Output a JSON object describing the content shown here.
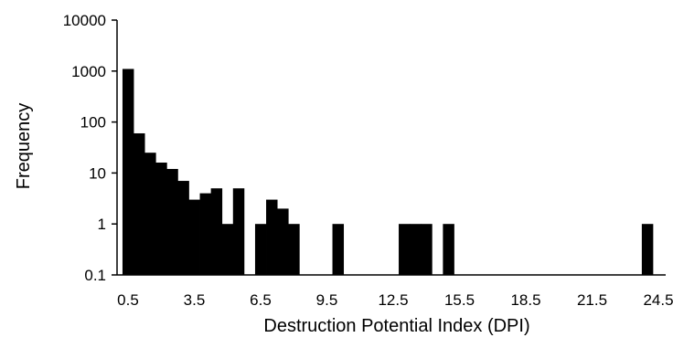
{
  "chart_data": {
    "type": "bar",
    "title": "",
    "xlabel": "Destruction Potential Index (DPI)",
    "ylabel": "Frequency",
    "y_scale": "log",
    "ylim": [
      0.1,
      10000
    ],
    "y_ticks": [
      "0.1",
      "1",
      "10",
      "100",
      "1000",
      "10000"
    ],
    "x_tick_labels": [
      "0.5",
      "3.5",
      "6.5",
      "9.5",
      "12.5",
      "15.5",
      "18.5",
      "21.5",
      "24.5"
    ],
    "bin_width": 0.5,
    "bins": {
      "x": [
        0.5,
        1.0,
        1.5,
        2.0,
        2.5,
        3.0,
        3.5,
        4.0,
        4.5,
        5.0,
        5.5,
        6.0,
        6.5,
        7.0,
        7.5,
        8.0,
        8.5,
        9.0,
        9.5,
        10.0,
        10.5,
        11.0,
        11.5,
        12.0,
        12.5,
        13.0,
        13.5,
        14.0,
        14.5,
        15.0,
        15.5,
        16.0,
        16.5,
        17.0,
        17.5,
        18.0,
        18.5,
        19.0,
        19.5,
        20.0,
        20.5,
        21.0,
        21.5,
        22.0,
        22.5,
        23.0,
        23.5,
        24.0,
        24.5,
        25.0
      ],
      "values": [
        1100,
        60,
        25,
        16,
        12,
        7,
        3,
        4,
        5,
        1,
        5,
        0,
        1,
        3,
        2,
        1,
        0,
        0,
        0,
        1,
        0,
        0,
        0,
        0,
        0,
        1,
        1,
        1,
        0,
        1,
        0,
        0,
        0,
        0,
        0,
        0,
        0,
        0,
        0,
        0,
        0,
        0,
        0,
        0,
        0,
        0,
        0,
        1,
        0,
        0
      ]
    },
    "bar_color": "#000000",
    "grid": false,
    "legend": "none"
  }
}
